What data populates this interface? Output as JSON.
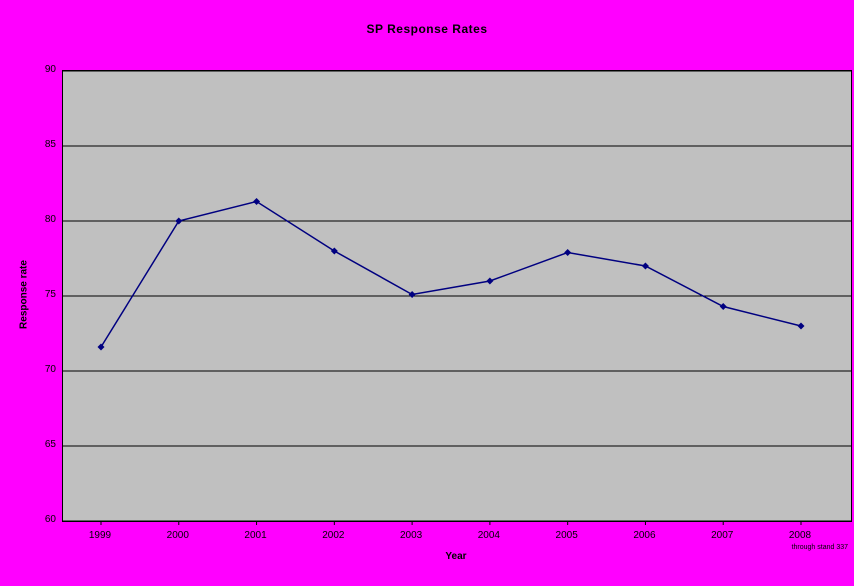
{
  "chart_data": {
    "type": "line",
    "title": "SP Response Rates",
    "xlabel": "Year",
    "ylabel": "Response rate",
    "categories": [
      "1999",
      "2000",
      "2001",
      "2002",
      "2003",
      "2004",
      "2005",
      "2006",
      "2007",
      "2008"
    ],
    "series": [
      {
        "name": "SP Response Rate",
        "values": [
          71.6,
          80.0,
          81.3,
          78.0,
          75.1,
          76.0,
          77.9,
          77.0,
          74.3,
          73.0
        ]
      }
    ],
    "ylim": [
      60,
      90
    ],
    "ytick_step": 5,
    "yticks": [
      60,
      65,
      70,
      75,
      80,
      85,
      90
    ],
    "grid": "horizontal",
    "legend": "none",
    "annotation": "through stand 337",
    "colors": {
      "background": "#FF00FF",
      "plot_bg": "#C0C0C0",
      "line": "#000080",
      "marker": "#000080",
      "grid": "#000000",
      "text": "#000000"
    }
  }
}
